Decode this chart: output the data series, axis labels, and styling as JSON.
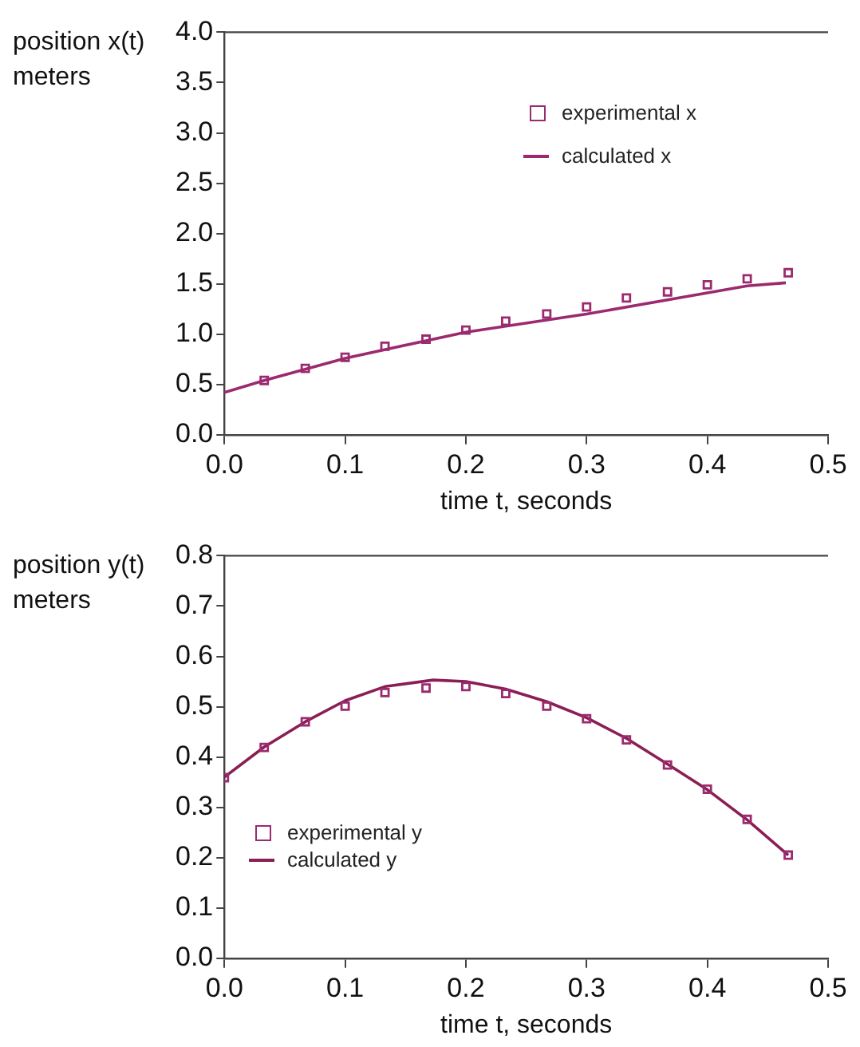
{
  "chart_data": [
    {
      "type": "scatter",
      "xlabel": "time t, seconds",
      "ylabel": "position x(t) meters",
      "xlim": [
        0,
        0.5
      ],
      "xticks": [
        {
          "value": 0,
          "label": "0.0"
        },
        0.1,
        0.2,
        0.3,
        0.4,
        0.5
      ],
      "ylim": [
        0,
        4
      ],
      "yticks": [
        {
          "value": 0,
          "label": "0.0"
        },
        0.5,
        {
          "value": 1,
          "label": "1.0"
        },
        1.5,
        {
          "value": 2,
          "label": "2.0"
        },
        2.5,
        {
          "value": 3,
          "label": "3.0"
        },
        3.5,
        {
          "value": 4,
          "label": "4.0"
        }
      ],
      "grid": false,
      "legend": "top right",
      "series": [
        {
          "name": "experimental x",
          "marker": "square",
          "color": "#9b2a6e",
          "x": [
            0.033,
            0.067,
            0.1,
            0.133,
            0.167,
            0.2,
            0.233,
            0.267,
            0.3,
            0.333,
            0.367,
            0.4,
            0.433,
            0.467
          ],
          "values": [
            0.54,
            0.66,
            0.77,
            0.88,
            0.95,
            1.04,
            1.13,
            1.2,
            1.27,
            1.36,
            1.42,
            1.49,
            1.55,
            1.61
          ]
        },
        {
          "name": "calculated x",
          "type": "line",
          "marker": "none",
          "line_style": "solid",
          "color": "#9b2a6e",
          "x": [
            0,
            0.033,
            0.1,
            0.2,
            0.3,
            0.4,
            0.433,
            0.465
          ],
          "values": [
            0.42,
            0.54,
            0.76,
            1.02,
            1.2,
            1.41,
            1.48,
            1.51
          ]
        }
      ]
    },
    {
      "type": "scatter",
      "xlabel": "time t, seconds",
      "ylabel": "position y(t) meters",
      "xlim": [
        0,
        0.5
      ],
      "xticks": [
        {
          "value": 0,
          "label": "0.0"
        },
        0.1,
        0.2,
        0.3,
        0.4,
        0.5
      ],
      "ylim": [
        0,
        0.8
      ],
      "yticks": [
        {
          "value": 0,
          "label": "0.0"
        },
        0.1,
        0.2,
        0.3,
        0.4,
        0.5,
        0.6,
        0.7,
        0.8
      ],
      "grid": false,
      "legend": "bottom left",
      "series": [
        {
          "name": "experimental y",
          "marker": "square",
          "color": "#9b2a6e",
          "x": [
            0,
            0.033,
            0.067,
            0.1,
            0.133,
            0.167,
            0.2,
            0.233,
            0.267,
            0.3,
            0.333,
            0.367,
            0.4,
            0.433,
            0.467
          ],
          "values": [
            0.359,
            0.419,
            0.47,
            0.501,
            0.528,
            0.537,
            0.54,
            0.526,
            0.501,
            0.476,
            0.434,
            0.384,
            0.336,
            0.276,
            0.205
          ]
        },
        {
          "name": "calculated y",
          "type": "line",
          "marker": "none",
          "line_style": "solid",
          "color": "#8a1f55",
          "x": [
            0,
            0.033,
            0.067,
            0.1,
            0.133,
            0.173,
            0.2,
            0.233,
            0.267,
            0.3,
            0.333,
            0.367,
            0.4,
            0.433,
            0.467
          ],
          "values": [
            0.36,
            0.42,
            0.47,
            0.512,
            0.54,
            0.553,
            0.55,
            0.535,
            0.51,
            0.478,
            0.437,
            0.386,
            0.335,
            0.275,
            0.205
          ]
        }
      ]
    }
  ]
}
